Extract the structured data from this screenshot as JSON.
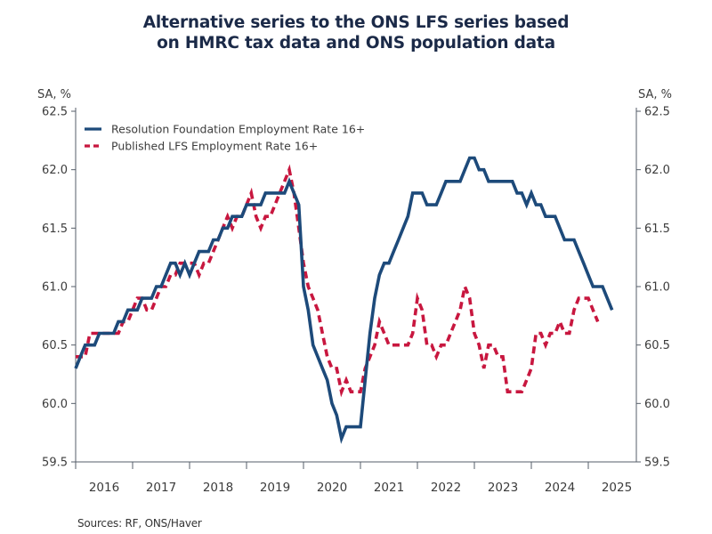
{
  "chart_data": {
    "type": "line",
    "title_lines": [
      "Alternative series to the ONS LFS series based",
      "on HMRC tax data and ONS population data"
    ],
    "ylabel_left": "SA, %",
    "ylabel_right": "SA, %",
    "xlabel": "",
    "ylim": [
      59.5,
      62.5
    ],
    "yticks": [
      "62.5",
      "62.0",
      "61.5",
      "61.0",
      "60.5",
      "60.0",
      "59.5"
    ],
    "ytick_values": [
      62.5,
      62.0,
      61.5,
      61.0,
      60.5,
      60.0,
      59.5
    ],
    "x_start": "2016-01",
    "x_end_years": 9.83,
    "xticks": [
      "2016",
      "2017",
      "2018",
      "2019",
      "2020",
      "2021",
      "2022",
      "2023",
      "2024",
      "2025"
    ],
    "legend_position": "top-left",
    "grid": false,
    "series": [
      {
        "name": "Resolution Foundation Employment Rate 16+",
        "color": "#1d4a7a",
        "style": "solid",
        "start": "2016-01",
        "frequency": "monthly",
        "values": [
          60.3,
          60.4,
          60.5,
          60.5,
          60.5,
          60.6,
          60.6,
          60.6,
          60.6,
          60.7,
          60.7,
          60.8,
          60.8,
          60.8,
          60.9,
          60.9,
          60.9,
          61.0,
          61.0,
          61.1,
          61.2,
          61.2,
          61.1,
          61.2,
          61.1,
          61.2,
          61.3,
          61.3,
          61.3,
          61.4,
          61.4,
          61.5,
          61.5,
          61.6,
          61.6,
          61.6,
          61.7,
          61.7,
          61.7,
          61.7,
          61.8,
          61.8,
          61.8,
          61.8,
          61.8,
          61.9,
          61.8,
          61.7,
          61.0,
          60.8,
          60.5,
          60.4,
          60.3,
          60.2,
          60.0,
          59.9,
          59.7,
          59.8,
          59.8,
          59.8,
          59.8,
          60.2,
          60.6,
          60.9,
          61.1,
          61.2,
          61.2,
          61.3,
          61.4,
          61.5,
          61.6,
          61.8,
          61.8,
          61.8,
          61.7,
          61.7,
          61.7,
          61.8,
          61.9,
          61.9,
          61.9,
          61.9,
          62.0,
          62.1,
          62.1,
          62.0,
          62.0,
          61.9,
          61.9,
          61.9,
          61.9,
          61.9,
          61.9,
          61.8,
          61.8,
          61.7,
          61.8,
          61.7,
          61.7,
          61.6,
          61.6,
          61.6,
          61.5,
          61.4,
          61.4,
          61.4,
          61.3,
          61.2,
          61.1,
          61.0,
          61.0,
          61.0,
          60.9,
          60.8
        ]
      },
      {
        "name": "Published LFS Employment Rate 16+",
        "color": "#c8173f",
        "style": "dashed",
        "start": "2016-01",
        "frequency": "monthly",
        "values": [
          60.4,
          60.4,
          60.4,
          60.6,
          60.6,
          60.6,
          60.6,
          60.6,
          60.6,
          60.6,
          60.7,
          60.7,
          60.8,
          60.9,
          60.9,
          60.8,
          60.8,
          60.9,
          61.0,
          61.0,
          61.1,
          61.1,
          61.2,
          61.2,
          61.2,
          61.2,
          61.1,
          61.2,
          61.2,
          61.3,
          61.4,
          61.5,
          61.6,
          61.5,
          61.6,
          61.6,
          61.7,
          61.8,
          61.6,
          61.5,
          61.6,
          61.6,
          61.7,
          61.8,
          61.9,
          62.0,
          61.8,
          61.5,
          61.2,
          61.0,
          60.9,
          60.8,
          60.6,
          60.4,
          60.3,
          60.3,
          60.1,
          60.2,
          60.1,
          60.1,
          60.1,
          60.3,
          60.4,
          60.5,
          60.7,
          60.6,
          60.5,
          60.5,
          60.5,
          60.5,
          60.5,
          60.6,
          60.9,
          60.8,
          60.5,
          60.5,
          60.4,
          60.5,
          60.5,
          60.6,
          60.7,
          60.8,
          61.0,
          60.9,
          60.6,
          60.5,
          60.3,
          60.5,
          60.5,
          60.4,
          60.4,
          60.1,
          60.1,
          60.1,
          60.1,
          60.2,
          60.3,
          60.6,
          60.6,
          60.5,
          60.6,
          60.6,
          60.7,
          60.6,
          60.6,
          60.8,
          60.9,
          60.9,
          60.9,
          60.8,
          60.7
        ]
      }
    ]
  },
  "footer": {
    "source": "Sources:  RF, ONS/Haver"
  }
}
